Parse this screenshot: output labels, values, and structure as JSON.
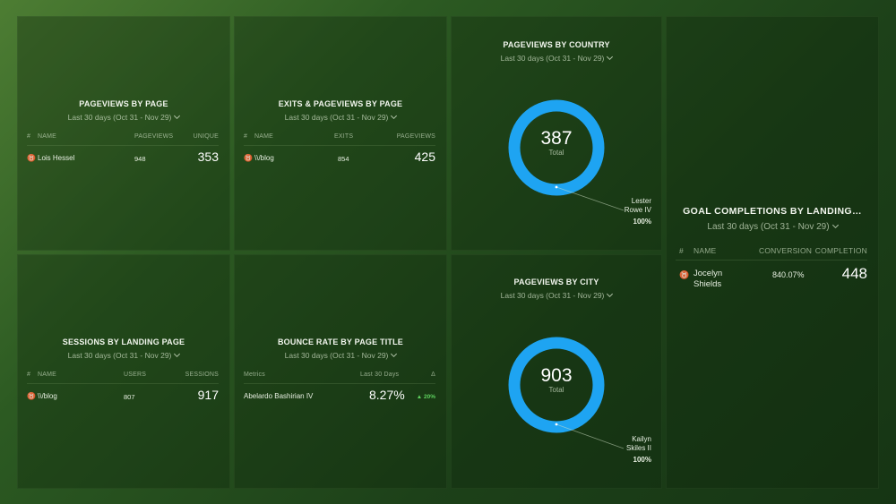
{
  "colors": {
    "donut": "#1ea4f2",
    "delta_up": "#5ed15e"
  },
  "widgets": {
    "pageviews_by_page": {
      "title": "PAGEVIEWS BY PAGE",
      "range": "Last 30 days (Oct 31 - Nov 29)",
      "columns": [
        "#",
        "NAME",
        "PAGEVIEWS",
        "UNIQUE"
      ],
      "row": {
        "icon": "medal-icon",
        "name": "Lois Hessel",
        "pageviews": "948",
        "unique": "353"
      }
    },
    "exits_pageviews_by_page": {
      "title": "EXITS & PAGEVIEWS BY PAGE",
      "range": "Last 30 days (Oct 31 - Nov 29)",
      "columns": [
        "#",
        "NAME",
        "EXITS",
        "PAGEVIEWS"
      ],
      "row": {
        "icon": "medal-icon",
        "name": "\\\\/blog",
        "exits": "854",
        "pageviews": "425"
      }
    },
    "pageviews_by_country": {
      "title": "PAGEVIEWS BY COUNTRY",
      "range": "Last 30 days (Oct 31 - Nov 29)",
      "total": "387",
      "total_label": "Total",
      "legend_name_line1": "Lester",
      "legend_name_line2": "Rowe IV",
      "legend_pct": "100%",
      "share": 1.0
    },
    "sessions_by_landing_page": {
      "title": "SESSIONS BY LANDING PAGE",
      "range": "Last 30 days (Oct 31 - Nov 29)",
      "columns": [
        "#",
        "NAME",
        "USERS",
        "SESSIONS"
      ],
      "row": {
        "icon": "medal-icon",
        "name": "\\\\/blog",
        "users": "807",
        "sessions": "917"
      }
    },
    "bounce_rate_by_page_title": {
      "title": "BOUNCE RATE BY PAGE TITLE",
      "range": "Last 30 days (Oct 31 - Nov 29)",
      "columns": [
        "Metrics",
        "Last 30 Days",
        "Δ"
      ],
      "row": {
        "name": "Abelardo Bashirian IV",
        "value": "8.27%",
        "delta": "▲ 20%"
      }
    },
    "pageviews_by_city": {
      "title": "PAGEVIEWS BY CITY",
      "range": "Last 30 days (Oct 31 - Nov 29)",
      "total": "903",
      "total_label": "Total",
      "legend_name_line1": "Kailyn",
      "legend_name_line2": "Skiles II",
      "legend_pct": "100%",
      "share": 1.0
    },
    "goal_completions": {
      "title": "GOAL COMPLETIONS BY LANDING…",
      "range": "Last 30 days (Oct 31 - Nov 29)",
      "columns": [
        "#",
        "NAME",
        "CONVERSION",
        "COMPLETION"
      ],
      "row": {
        "icon": "medal-icon",
        "name_line1": "Jocelyn",
        "name_line2": "Shields",
        "conversion": "840.07%",
        "completion": "448"
      }
    }
  }
}
